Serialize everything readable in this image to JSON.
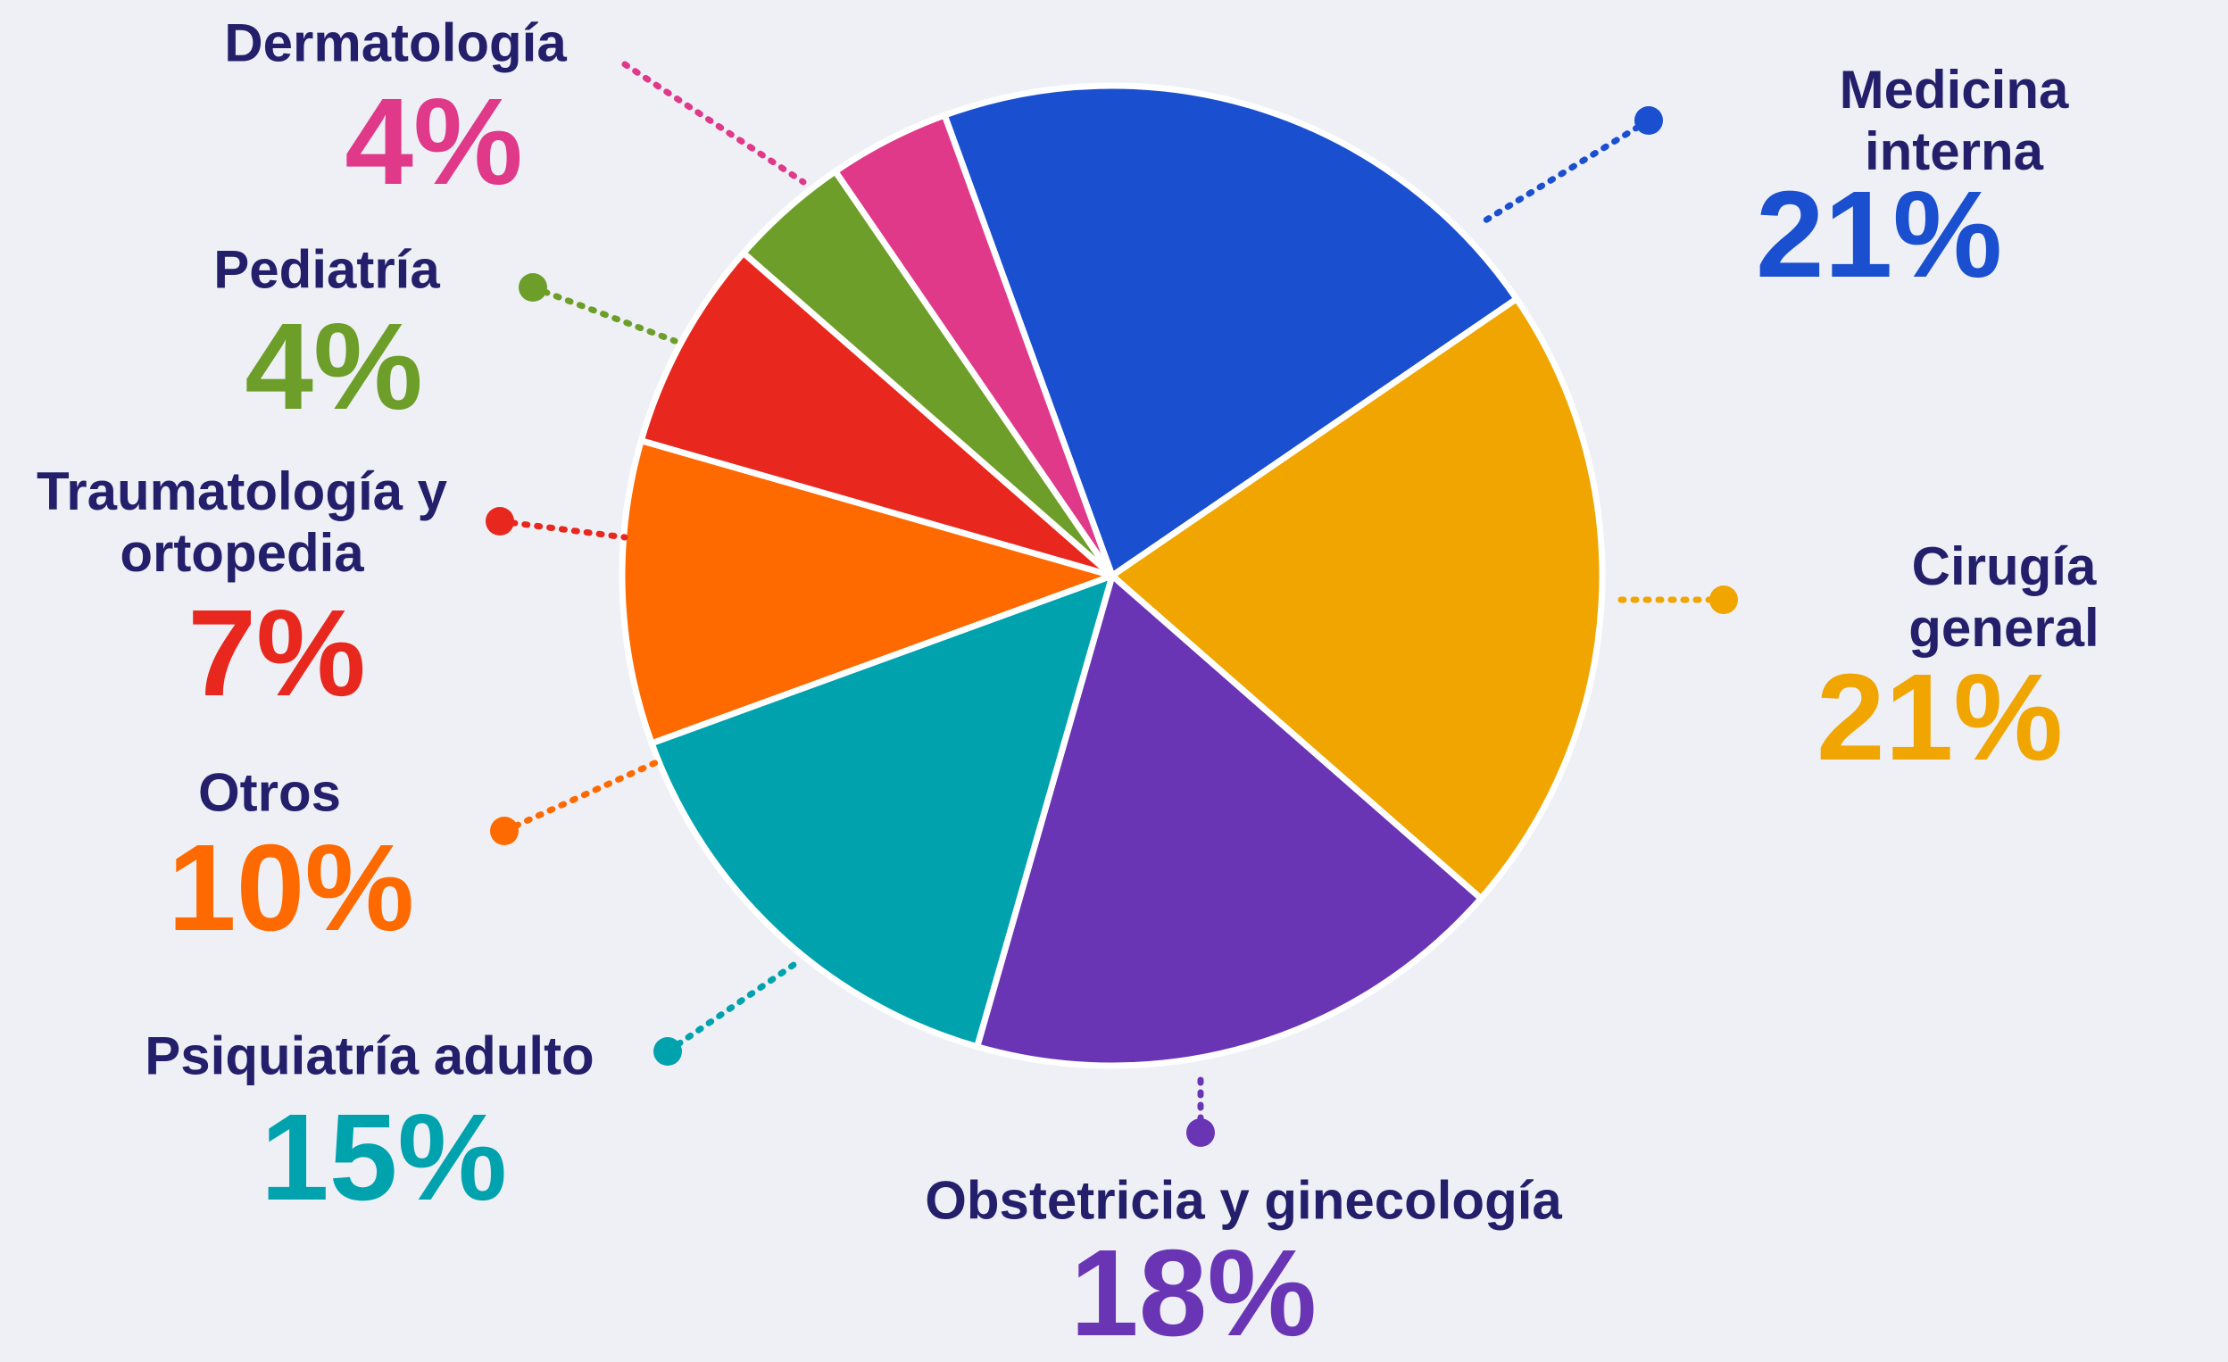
{
  "chart_data": {
    "type": "pie",
    "categories": [
      "Medicina interna",
      "Cirugía general",
      "Obstetricia y ginecología",
      "Psiquiatría adulto",
      "Otros",
      "Traumatología y ortopedia",
      "Pediatría",
      "Dermatología"
    ],
    "values": [
      21,
      21,
      18,
      15,
      10,
      7,
      4,
      4
    ],
    "value_labels": [
      "21%",
      "21%",
      "18%",
      "15%",
      "10%",
      "7%",
      "4%",
      "4%"
    ],
    "colors": [
      "#1a4fd0",
      "#f0a500",
      "#6a35b5",
      "#00a3ad",
      "#ff6a00",
      "#e8281e",
      "#6e9e2a",
      "#e0398a"
    ]
  }
}
